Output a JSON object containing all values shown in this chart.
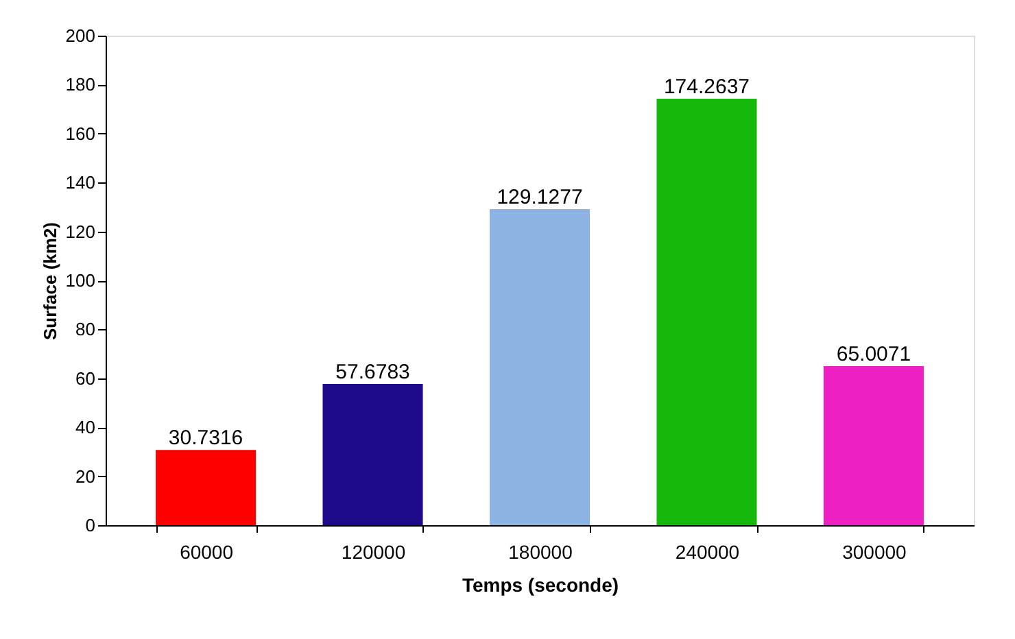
{
  "chart_data": {
    "type": "bar",
    "xlabel": "Temps (seconde)",
    "ylabel": "Surface (km2)",
    "categories": [
      "60000",
      "120000",
      "180000",
      "240000",
      "300000"
    ],
    "values": [
      30.7316,
      57.6783,
      129.1277,
      174.2637,
      65.0071
    ],
    "colors": [
      "#ff0000",
      "#1c0a8a",
      "#8db3e2",
      "#17b80c",
      "#ee1fc3"
    ],
    "ylim": [
      0,
      200
    ],
    "yticks": [
      0,
      20,
      40,
      60,
      80,
      100,
      120,
      140,
      160,
      180,
      200
    ],
    "data_labels": true,
    "grid": false
  }
}
